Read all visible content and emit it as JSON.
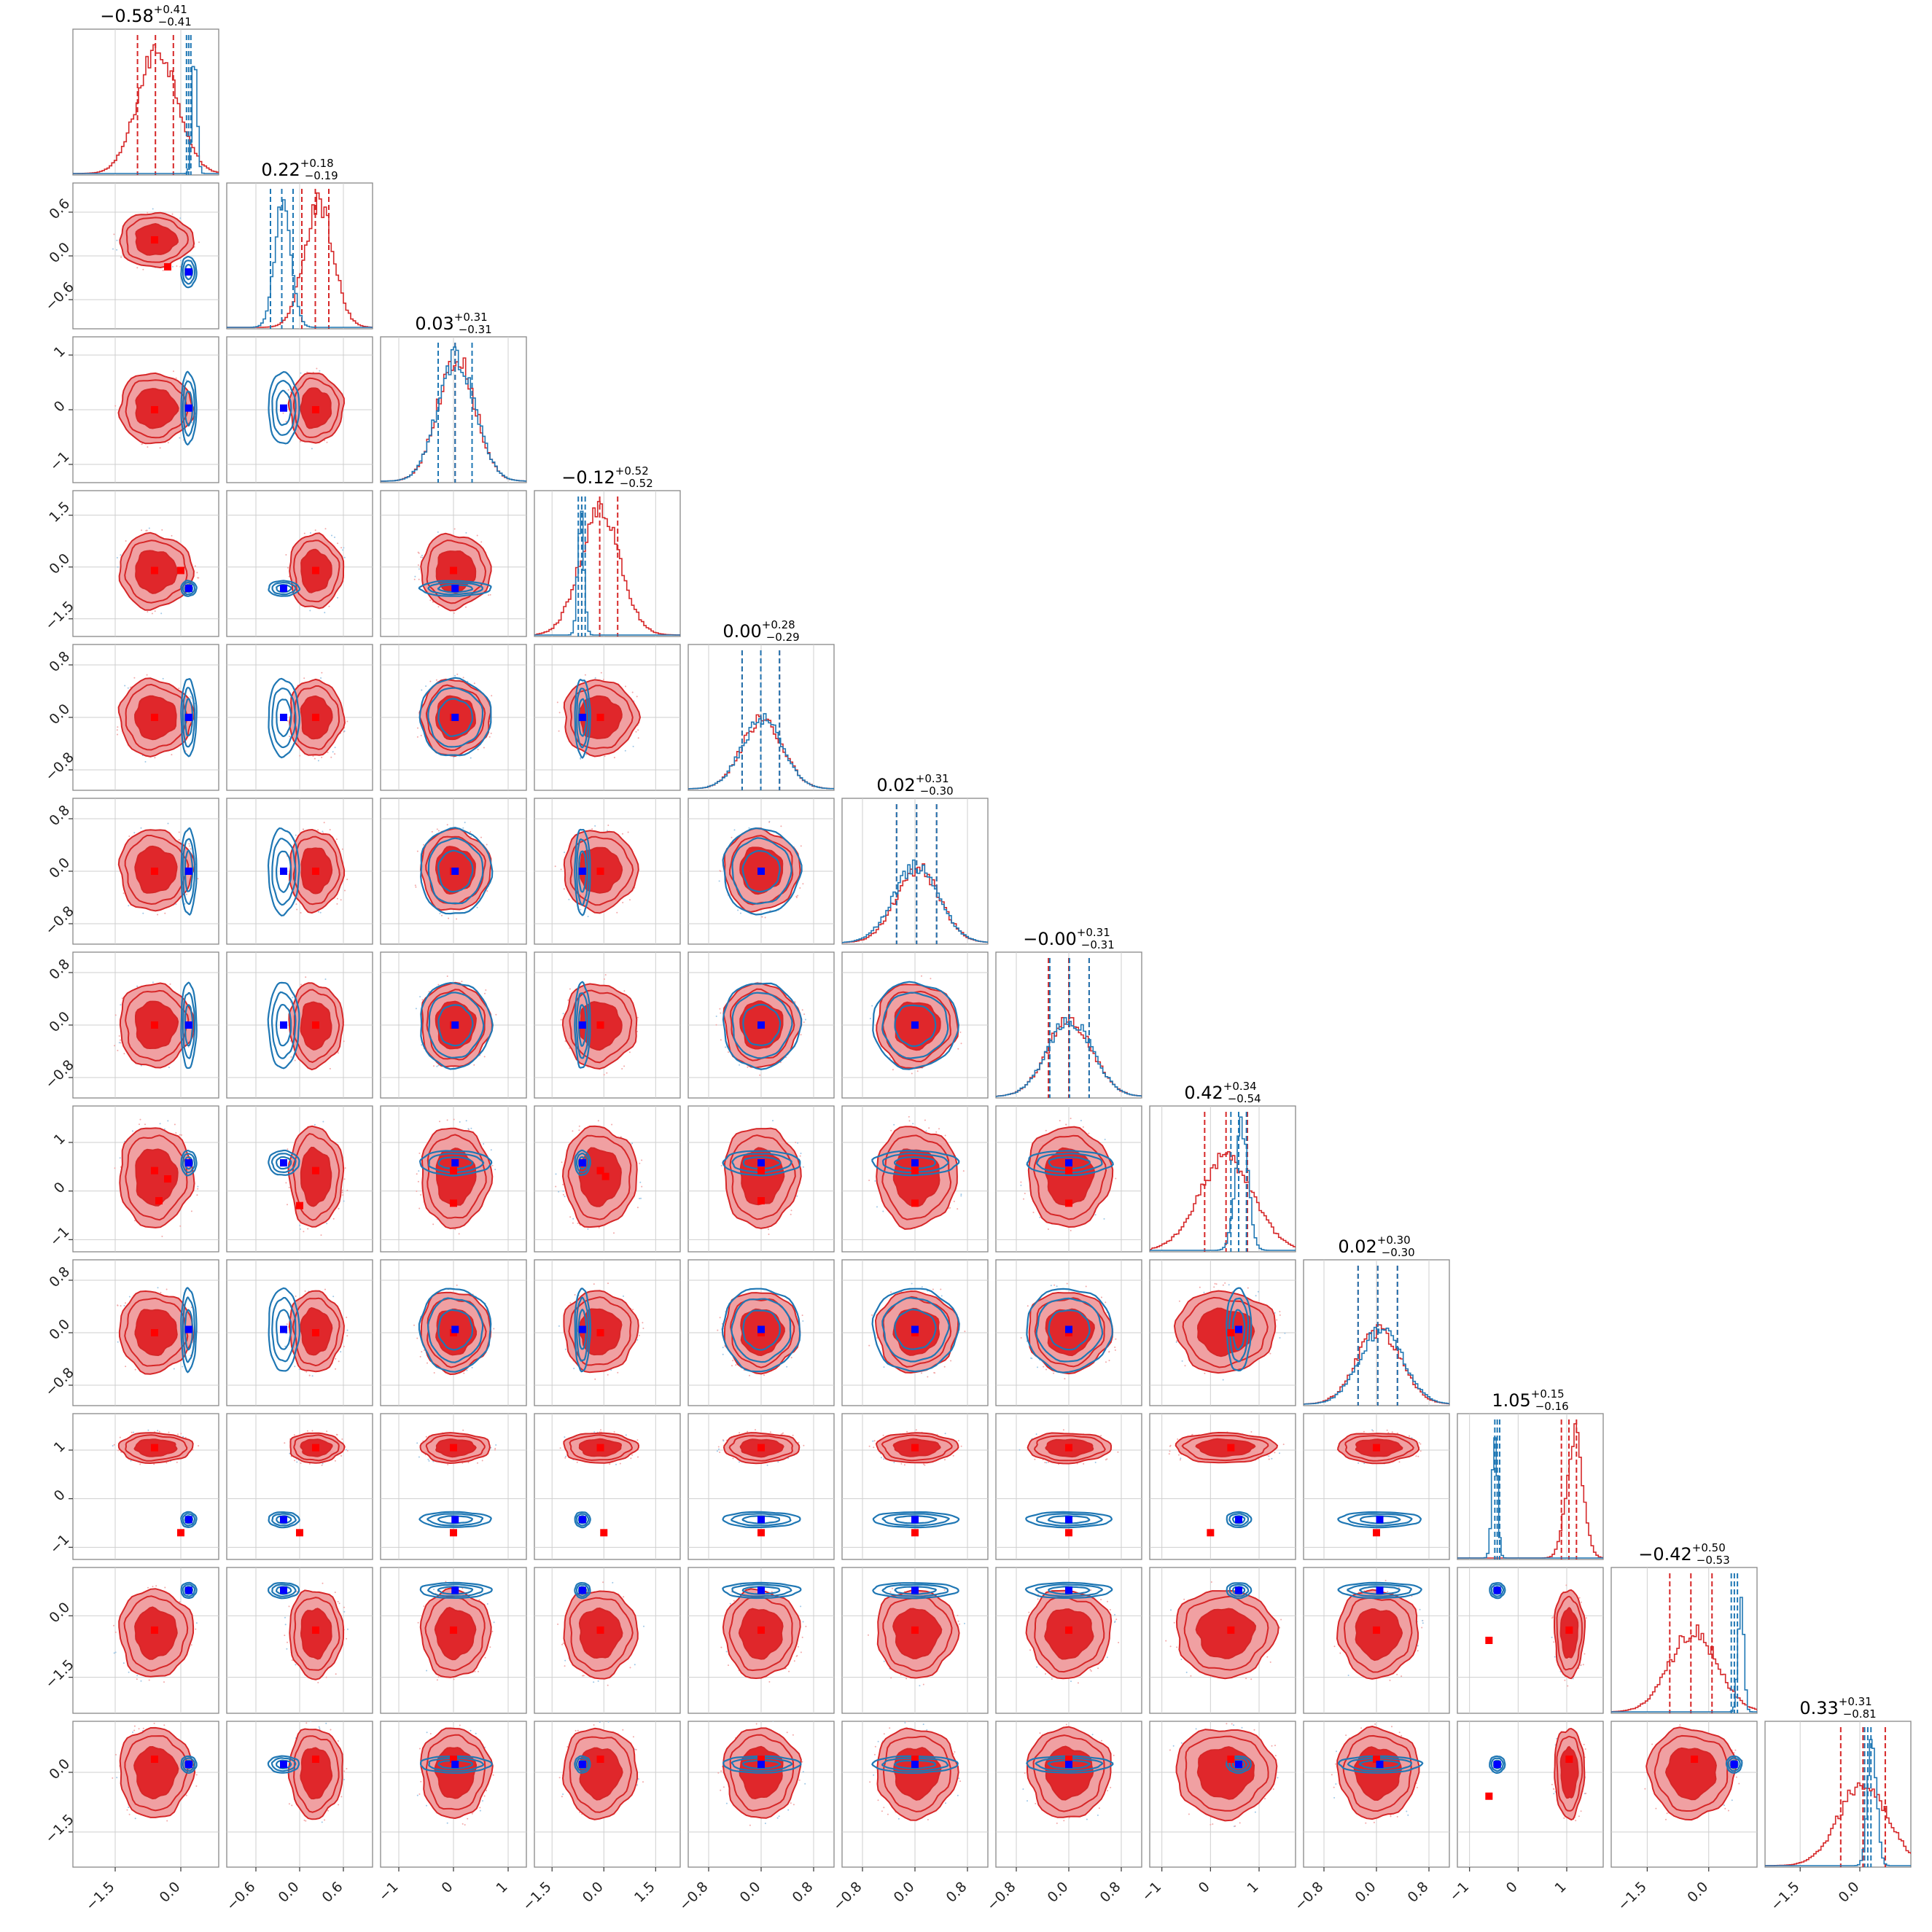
{
  "chart_data": {
    "type": "corner",
    "n_params": 12,
    "series": [
      {
        "name": "",
        "color": "#d62728",
        "fill_dark": "#e0272b",
        "fill_light": "#f0a0a2",
        "marker": "#ff0000"
      },
      {
        "name": "",
        "color": "#1f77b4",
        "marker": "#0000ff"
      }
    ],
    "titles": [
      {
        "median": "−0.58",
        "plus": "+0.41",
        "minus": "−0.41"
      },
      {
        "median": "0.22",
        "plus": "+0.18",
        "minus": "−0.19"
      },
      {
        "median": "0.03",
        "plus": "+0.31",
        "minus": "−0.31"
      },
      {
        "median": "−0.12",
        "plus": "+0.52",
        "minus": "−0.52"
      },
      {
        "median": "0.00",
        "plus": "+0.28",
        "minus": "−0.29"
      },
      {
        "median": "0.02",
        "plus": "+0.31",
        "minus": "−0.30"
      },
      {
        "median": "−0.00",
        "plus": "+0.31",
        "minus": "−0.31"
      },
      {
        "median": "0.42",
        "plus": "+0.34",
        "minus": "−0.54"
      },
      {
        "median": "0.02",
        "plus": "+0.30",
        "minus": "−0.30"
      },
      {
        "median": "1.05",
        "plus": "+0.15",
        "minus": "−0.16"
      },
      {
        "median": "−0.42",
        "plus": "+0.50",
        "minus": "−0.53"
      },
      {
        "median": "0.33",
        "plus": "+0.31",
        "minus": "−0.81"
      }
    ],
    "axis_ranges": [
      [
        -2.3,
        0.7
      ],
      [
        -0.9,
        0.9
      ],
      [
        -1.2,
        1.2
      ],
      [
        -1.8,
        2.0
      ],
      [
        -1.0,
        1.0
      ],
      [
        -1.0,
        1.0
      ],
      [
        -1.0,
        1.0
      ],
      [
        -1.1,
        1.6
      ],
      [
        -1.0,
        1.0
      ],
      [
        -1.1,
        1.6
      ],
      [
        -2.2,
        1.0
      ],
      [
        -2.2,
        1.1
      ]
    ],
    "ticks": [
      [
        -1.5,
        0.0
      ],
      [
        -0.6,
        0.0,
        0.6
      ],
      [
        -1,
        0,
        1
      ],
      [
        -1.5,
        0.0,
        1.5
      ],
      [
        -0.8,
        0.0,
        0.8
      ],
      [
        -0.8,
        0.0,
        0.8
      ],
      [
        -0.8,
        0.0,
        0.8
      ],
      [
        -1,
        0,
        1
      ],
      [
        -0.8,
        0.0,
        0.8
      ],
      [
        -1,
        0,
        1
      ],
      [
        -1.5,
        0.0
      ],
      [
        -1.5,
        0.0
      ]
    ],
    "tick_labels": [
      [
        "−1.5",
        "0.0"
      ],
      [
        "−0.6",
        "0.0",
        "0.6"
      ],
      [
        "−1",
        "0",
        "1"
      ],
      [
        "−1.5",
        "0.0",
        "1.5"
      ],
      [
        "−0.8",
        "0.0",
        "0.8"
      ],
      [
        "−0.8",
        "0.0",
        "0.8"
      ],
      [
        "−0.8",
        "0.0",
        "0.8"
      ],
      [
        "−1",
        "0",
        "1"
      ],
      [
        "−0.8",
        "0.0",
        "0.8"
      ],
      [
        "−1",
        "0",
        "1"
      ],
      [
        "−1.5",
        "0.0"
      ],
      [
        "−1.5",
        "0.0"
      ]
    ],
    "red": {
      "mean": [
        -0.58,
        0.22,
        0.03,
        -0.12,
        0.0,
        0.02,
        0.0,
        0.3,
        0.02,
        1.05,
        -0.42,
        0.0
      ],
      "sd": [
        0.41,
        0.18,
        0.31,
        0.52,
        0.28,
        0.3,
        0.31,
        0.5,
        0.3,
        0.15,
        0.52,
        0.55
      ],
      "quantiles": [
        [
          -0.99,
          -0.17
        ],
        [
          0.03,
          0.4
        ],
        [
          -0.28,
          0.34
        ],
        [
          -0.64,
          0.4
        ],
        [
          -0.29,
          0.28
        ],
        [
          -0.28,
          0.33
        ],
        [
          -0.31,
          0.31
        ],
        [
          -0.12,
          0.76
        ],
        [
          -0.28,
          0.32
        ],
        [
          0.89,
          1.2
        ],
        [
          -0.95,
          0.08
        ],
        [
          -0.48,
          0.64
        ]
      ],
      "markers": [
        -0.6,
        0.22,
        0.0,
        -0.1,
        0.0,
        0.0,
        0.0,
        0.42,
        0.0,
        1.05,
        -0.35,
        0.33
      ],
      "outliers": [
        [
          1,
          0,
          -0.3,
          -0.15
        ],
        [
          3,
          0,
          0.0,
          -0.1
        ],
        [
          7,
          0,
          -0.5,
          -0.2
        ],
        [
          7,
          0,
          -0.3,
          0.25
        ],
        [
          7,
          1,
          0.0,
          -0.3
        ],
        [
          7,
          2,
          0.0,
          -0.25
        ],
        [
          7,
          3,
          0.05,
          0.3
        ],
        [
          7,
          4,
          0.0,
          -0.2
        ],
        [
          7,
          5,
          0.0,
          -0.25
        ],
        [
          7,
          6,
          0.0,
          -0.25
        ],
        [
          9,
          0,
          0.0,
          -0.7
        ],
        [
          9,
          1,
          0.0,
          -0.7
        ],
        [
          9,
          2,
          0.0,
          -0.7
        ],
        [
          9,
          3,
          0.0,
          -0.7
        ],
        [
          9,
          4,
          0.0,
          -0.7
        ],
        [
          9,
          5,
          0.0,
          -0.7
        ],
        [
          9,
          6,
          0.0,
          -0.7
        ],
        [
          9,
          7,
          0.0,
          -0.7
        ],
        [
          9,
          8,
          0.0,
          -0.7
        ],
        [
          10,
          9,
          -0.6,
          -0.6
        ],
        [
          11,
          9,
          -0.6,
          -0.6
        ]
      ]
    },
    "blue": {
      "mean": [
        0.18,
        -0.22,
        0.03,
        -0.62,
        0.0,
        0.0,
        0.0,
        0.58,
        0.05,
        -0.43,
        0.62,
        0.2
      ],
      "sd": [
        0.05,
        0.1,
        0.31,
        0.08,
        0.28,
        0.31,
        0.31,
        0.12,
        0.3,
        0.05,
        0.06,
        0.1
      ],
      "quantiles": [
        [
          0.13,
          0.23
        ],
        [
          -0.4,
          -0.09
        ],
        [
          -0.28,
          0.34
        ],
        [
          -0.74,
          -0.54
        ],
        [
          -0.29,
          0.28
        ],
        [
          -0.28,
          0.33
        ],
        [
          -0.29,
          0.31
        ],
        [
          0.42,
          0.74
        ],
        [
          -0.28,
          0.32
        ],
        [
          -0.48,
          -0.38
        ],
        [
          0.55,
          0.7
        ],
        [
          0.12,
          0.28
        ]
      ],
      "markers": [
        0.18,
        -0.22,
        0.03,
        -0.62,
        0.0,
        0.0,
        0.0,
        0.58,
        0.05,
        -0.43,
        0.62,
        0.2
      ]
    }
  }
}
